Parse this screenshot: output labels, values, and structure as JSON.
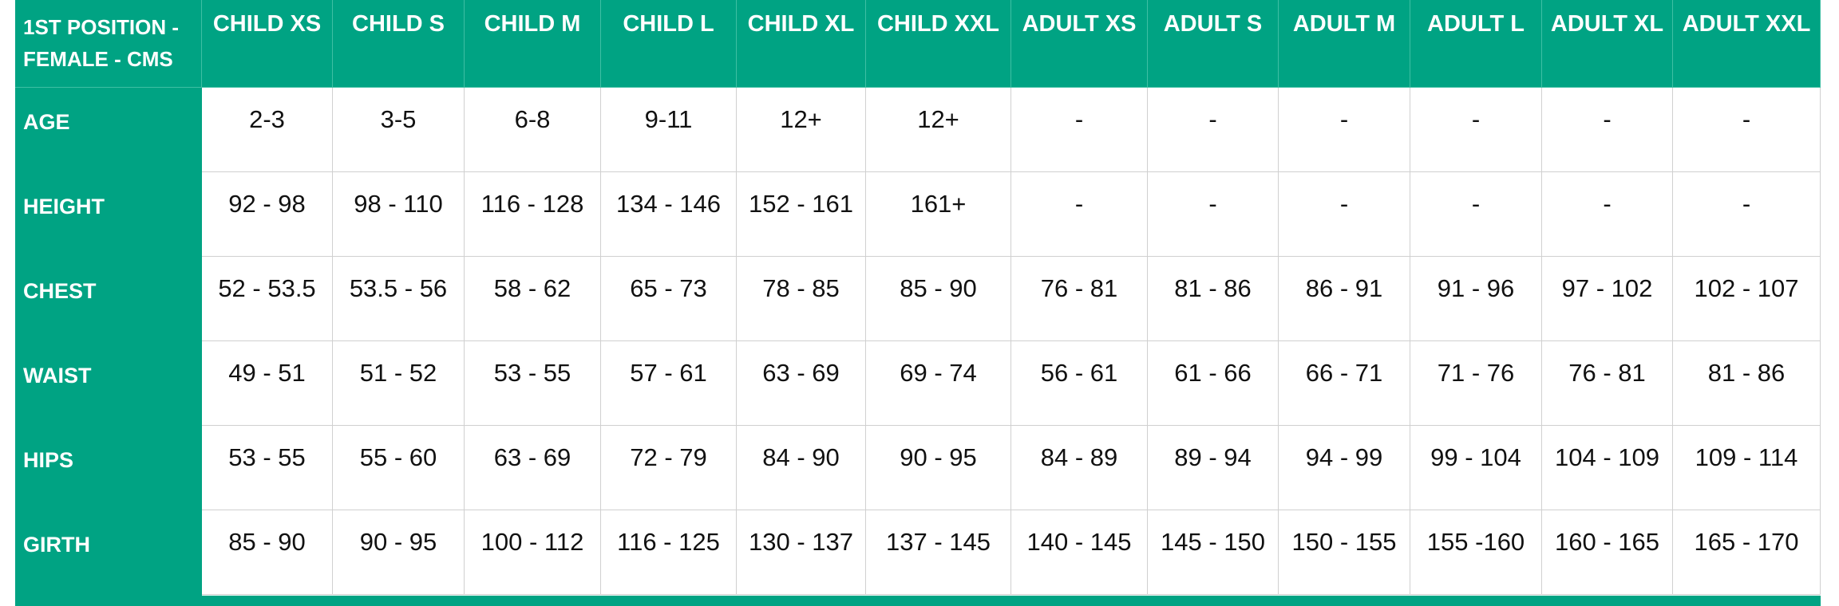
{
  "table": {
    "corner": "1ST POSITION - FEMALE - CMS",
    "columns": [
      "CHILD XS",
      "CHILD S",
      "CHILD M",
      "CHILD L",
      "CHILD XL",
      "CHILD XXL",
      "ADULT XS",
      "ADULT S",
      "ADULT M",
      "ADULT L",
      "ADULT XL",
      "ADULT XXL"
    ],
    "rows": [
      {
        "label": "AGE",
        "cells": [
          "2-3",
          "3-5",
          "6-8",
          "9-11",
          "12+",
          "12+",
          "-",
          "-",
          "-",
          "-",
          "-",
          "-"
        ]
      },
      {
        "label": "HEIGHT",
        "cells": [
          "92 - 98",
          "98 - 110",
          "116 - 128",
          "134 - 146",
          "152 - 161",
          "161+",
          "-",
          "-",
          "-",
          "-",
          "-",
          "-"
        ]
      },
      {
        "label": "CHEST",
        "cells": [
          "52 - 53.5",
          "53.5 - 56",
          "58 - 62",
          "65 - 73",
          "78 - 85",
          "85 - 90",
          "76 - 81",
          "81 - 86",
          "86 - 91",
          "91 - 96",
          "97 - 102",
          "102 - 107"
        ]
      },
      {
        "label": "WAIST",
        "cells": [
          "49 - 51",
          "51 - 52",
          "53 - 55",
          "57 - 61",
          "63 - 69",
          "69 - 74",
          "56 - 61",
          "61 - 66",
          "66 - 71",
          "71 - 76",
          "76 - 81",
          "81 - 86"
        ]
      },
      {
        "label": "HIPS",
        "cells": [
          "53 - 55",
          "55 - 60",
          "63 - 69",
          "72 - 79",
          "84 - 90",
          "90 - 95",
          "84 - 89",
          "89 - 94",
          "94 - 99",
          "99 - 104",
          "104 - 109",
          "109 - 114"
        ]
      },
      {
        "label": "GIRTH",
        "cells": [
          "85 - 90",
          "90 - 95",
          "100 - 112",
          "116 - 125",
          "130 - 137",
          "137 - 145",
          "140 - 145",
          "145 - 150",
          "150 - 155",
          "155 -160",
          "160 - 165",
          "165 - 170"
        ]
      }
    ]
  }
}
